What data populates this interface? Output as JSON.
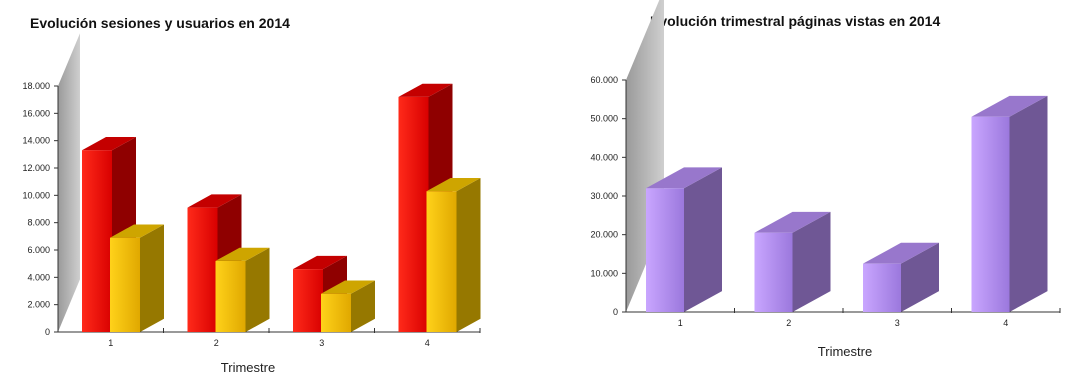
{
  "chart_data": [
    {
      "type": "bar",
      "title": "Evolución sesiones y usuarios en 2014",
      "xlabel": "Trimestre",
      "ylabel": "",
      "categories": [
        "1",
        "2",
        "3",
        "4"
      ],
      "yticks": [
        "0",
        "2.000",
        "4.000",
        "6.000",
        "8.000",
        "10.000",
        "12.000",
        "14.000",
        "16.000",
        "18.000"
      ],
      "ylim": [
        0,
        18000
      ],
      "grid": false,
      "legend": "none",
      "series": [
        {
          "values": [
            13300,
            9100,
            4600,
            17200
          ],
          "color": "#e60000"
        },
        {
          "values": [
            6900,
            5200,
            2800,
            10300
          ],
          "color": "#f2c200"
        }
      ]
    },
    {
      "type": "bar",
      "title": "Evolución trimestral páginas vistas en 2014",
      "xlabel": "Trimestre",
      "ylabel": "",
      "categories": [
        "1",
        "2",
        "3",
        "4"
      ],
      "yticks": [
        "0",
        "10.000",
        "20.000",
        "30.000",
        "40.000",
        "50.000",
        "60.000"
      ],
      "ylim": [
        0,
        60000
      ],
      "grid": false,
      "legend": "none",
      "series": [
        {
          "values": [
            32000,
            20500,
            12500,
            50500
          ],
          "color": "#b38cf0"
        }
      ]
    }
  ]
}
